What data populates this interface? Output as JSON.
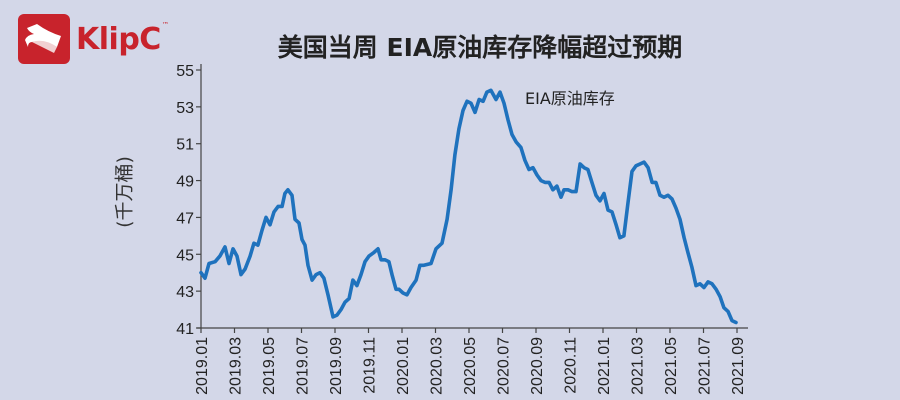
{
  "brand": {
    "name": "KlipC",
    "tm": "™",
    "color": "#c8232c"
  },
  "title": "美国当周 EIA原油库存降幅超过预期",
  "colors": {
    "background": "#d3d7e8",
    "line": "#1f72bd",
    "axis": "#444444"
  },
  "chart_data": {
    "type": "line",
    "title": "美国当周 EIA原油库存降幅超过预期",
    "xlabel": "",
    "ylabel": "(千万桶)",
    "ylim": [
      41,
      55
    ],
    "yticks": [
      41,
      43,
      45,
      47,
      49,
      51,
      53,
      55
    ],
    "xticks": [
      "2019.01",
      "2019.03",
      "2019.05",
      "2019.07",
      "2019.09",
      "2019.11",
      "2020.01",
      "2020.03",
      "2020.05",
      "2020.07",
      "2020.09",
      "2020.11",
      "2021.01",
      "2021.03",
      "2021.05",
      "2021.07",
      "2021.09"
    ],
    "grid": false,
    "legend": {
      "position": "annotation-near-peak",
      "entries": [
        "EIA原油库存"
      ]
    },
    "series": [
      {
        "name": "EIA原油库存",
        "x_months_from_2019_01": [
          0,
          0.24,
          0.48,
          0.84,
          1.13,
          1.43,
          1.67,
          1.91,
          2.15,
          2.39,
          2.63,
          2.93,
          3.16,
          3.4,
          3.64,
          3.88,
          4.12,
          4.36,
          4.6,
          4.84,
          5.01,
          5.19,
          5.43,
          5.61,
          5.85,
          6.03,
          6.21,
          6.39,
          6.63,
          6.87,
          7.1,
          7.34,
          7.58,
          7.88,
          8.12,
          8.36,
          8.6,
          8.84,
          9.07,
          9.31,
          9.55,
          9.79,
          10.03,
          10.33,
          10.57,
          10.75,
          10.99,
          11.22,
          11.4,
          11.64,
          11.82,
          12.06,
          12.3,
          12.54,
          12.84,
          13.07,
          13.31,
          13.73,
          14.03,
          14.39,
          14.69,
          14.93,
          15.16,
          15.4,
          15.64,
          15.88,
          16.12,
          16.36,
          16.6,
          16.84,
          17.07,
          17.31,
          17.61,
          17.85,
          18.09,
          18.33,
          18.57,
          18.81,
          19.1,
          19.34,
          19.58,
          19.82,
          20.06,
          20.3,
          20.54,
          20.78,
          21.01,
          21.25,
          21.49,
          21.67,
          21.91,
          22.15,
          22.39,
          22.63,
          22.87,
          23.1,
          23.34,
          23.58,
          23.82,
          24.06,
          24.3,
          24.54,
          24.78,
          25.01,
          25.25,
          25.49,
          25.73,
          25.97,
          26.21,
          26.45,
          26.69,
          26.93,
          27.16,
          27.4,
          27.64,
          27.88,
          28.12,
          28.36,
          28.6,
          28.84,
          29.07,
          29.31,
          29.55,
          29.79,
          30.03,
          30.27,
          30.51,
          30.75,
          30.99,
          31.22,
          31.46,
          31.7,
          31.94,
          32.18,
          32.36
        ],
        "values": [
          44.0,
          43.7,
          44.5,
          44.6,
          44.9,
          45.4,
          44.5,
          45.3,
          44.9,
          43.9,
          44.2,
          44.9,
          45.6,
          45.5,
          46.3,
          47.0,
          46.6,
          47.3,
          47.6,
          47.6,
          48.3,
          48.5,
          48.2,
          46.9,
          46.7,
          45.8,
          45.5,
          44.4,
          43.6,
          43.9,
          44.0,
          43.7,
          42.8,
          41.6,
          41.7,
          42.0,
          42.4,
          42.6,
          43.6,
          43.3,
          43.9,
          44.6,
          44.9,
          45.1,
          45.3,
          44.7,
          44.7,
          44.6,
          43.9,
          43.1,
          43.1,
          42.9,
          42.8,
          43.2,
          43.6,
          44.4,
          44.4,
          44.5,
          45.3,
          45.6,
          46.9,
          48.5,
          50.4,
          51.8,
          52.8,
          53.3,
          53.2,
          52.7,
          53.4,
          53.3,
          53.8,
          53.9,
          53.4,
          53.8,
          53.2,
          52.3,
          51.5,
          51.1,
          50.8,
          50.1,
          49.6,
          49.7,
          49.3,
          49.0,
          48.9,
          48.9,
          48.5,
          48.7,
          48.1,
          48.5,
          48.5,
          48.4,
          48.4,
          49.9,
          49.7,
          49.6,
          48.9,
          48.2,
          47.9,
          48.3,
          47.4,
          47.3,
          46.6,
          45.9,
          46.0,
          47.8,
          49.5,
          49.8,
          49.9,
          50.0,
          49.7,
          48.9,
          48.9,
          48.2,
          48.1,
          48.2,
          48.0,
          47.5,
          46.9,
          45.9,
          45.1,
          44.3,
          43.3,
          43.4,
          43.2,
          43.5,
          43.4,
          43.1,
          42.7,
          42.1,
          41.9,
          41.4,
          41.3
        ]
      }
    ],
    "annotation": {
      "text": "EIA原油库存",
      "near": "2020.07 peak"
    }
  }
}
